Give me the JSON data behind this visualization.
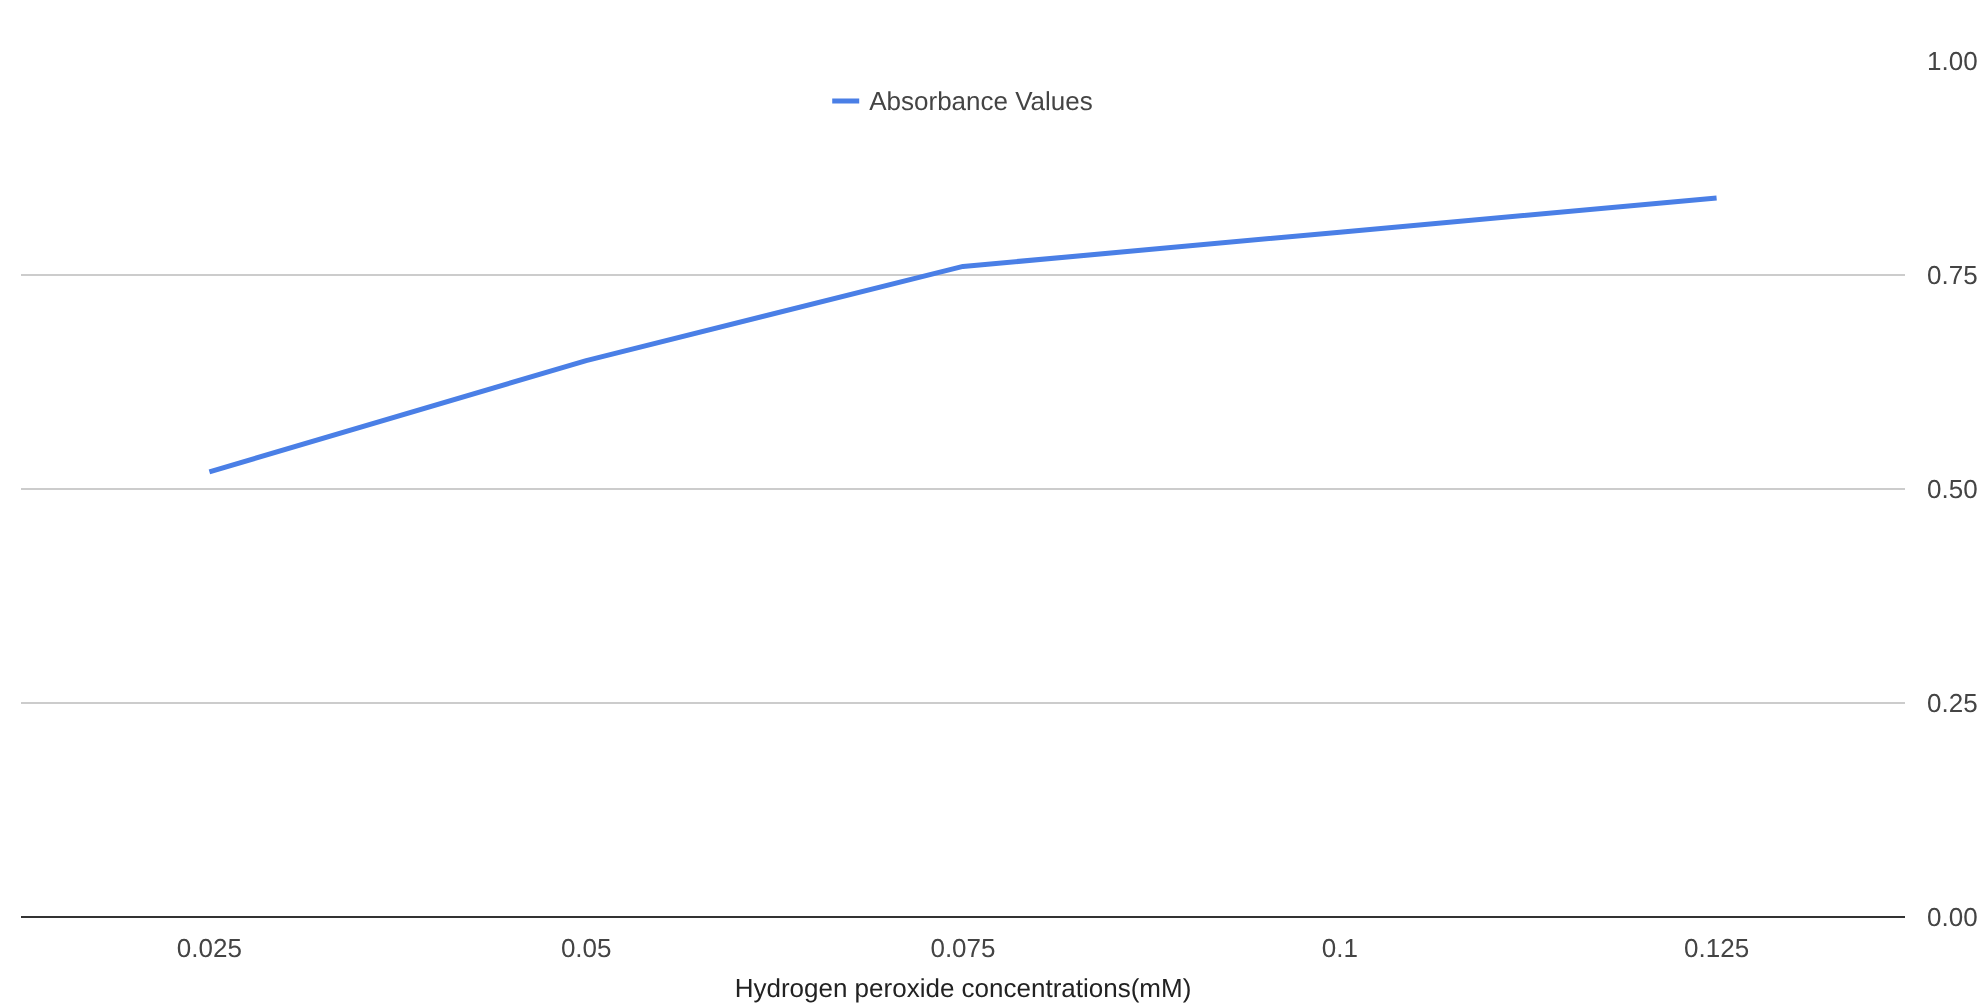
{
  "chart_data": {
    "type": "line",
    "xlabel": "Hydrogen peroxide concentrations(mM)",
    "categories": [
      "0.025",
      "0.05",
      "0.075",
      "0.1",
      "0.125"
    ],
    "series": [
      {
        "name": "Absorbance Values",
        "color": "#4a7fe6",
        "values": [
          0.52,
          0.65,
          0.76,
          0.8,
          0.84
        ]
      }
    ],
    "ylim": [
      0,
      1
    ],
    "yticks": [
      {
        "value": 0,
        "label": "0.00"
      },
      {
        "value": 0.25,
        "label": "0.25"
      },
      {
        "value": 0.5,
        "label": "0.50"
      },
      {
        "value": 0.75,
        "label": "0.75"
      },
      {
        "value": 1,
        "label": "1.00"
      }
    ],
    "grid": "y",
    "legend": "top",
    "marker": "none",
    "line_style": "solid"
  }
}
